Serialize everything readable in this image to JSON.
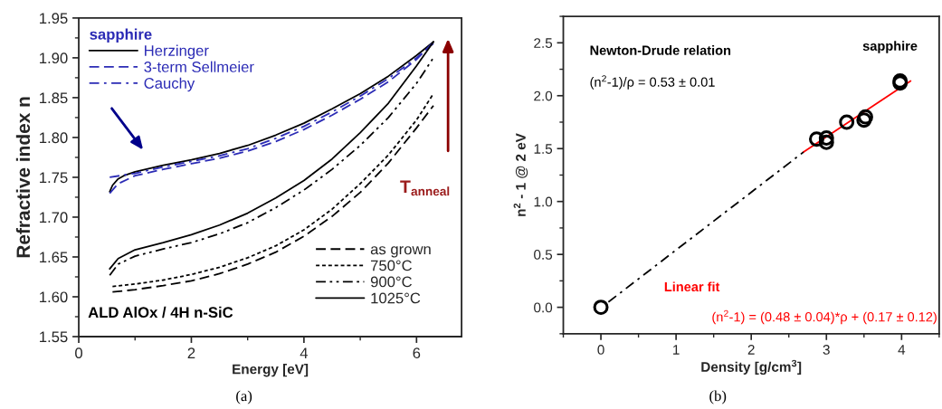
{
  "chart_data": [
    {
      "type": "line",
      "xlabel": "Energy [eV]",
      "ylabel": "Refractive index n",
      "legend_title": "sapphire",
      "legend": "top left",
      "xlim": [
        0,
        6.8
      ],
      "xticks": [
        0,
        2,
        4,
        6
      ],
      "ylim": [
        1.55,
        1.95
      ],
      "yticks": [
        {
          "value": 1.55,
          "label": "1.55"
        },
        {
          "value": 1.6,
          "label": "1.60"
        },
        {
          "value": 1.65,
          "label": "1.65"
        },
        {
          "value": 1.7,
          "label": "1.70"
        },
        {
          "value": 1.75,
          "label": "1.75"
        },
        {
          "value": 1.8,
          "label": "1.80"
        },
        {
          "value": 1.85,
          "label": "1.85"
        },
        {
          "value": 1.9,
          "label": "1.90"
        },
        {
          "value": 1.95,
          "label": "1.95"
        }
      ],
      "series": [
        {
          "name": "Herzinger",
          "color": "#000000",
          "line_style": "solid",
          "x": [
            0.55,
            0.6,
            0.7,
            0.8,
            1.0,
            1.5,
            2,
            2.5,
            3,
            3.5,
            4,
            4.5,
            5,
            5.5,
            6,
            6.3
          ],
          "values": [
            1.732,
            1.74,
            1.748,
            1.752,
            1.757,
            1.765,
            1.772,
            1.78,
            1.79,
            1.803,
            1.818,
            1.836,
            1.855,
            1.877,
            1.903,
            1.92
          ]
        },
        {
          "name": "3-term Sellmeier",
          "color": "#2b2bb5",
          "line_style": "dashed",
          "x": [
            0.55,
            0.7,
            1.0,
            1.5,
            2,
            2.5,
            3,
            3.5,
            4,
            4.5,
            5,
            5.5,
            6,
            6.3
          ],
          "values": [
            1.73,
            1.742,
            1.752,
            1.76,
            1.767,
            1.774,
            1.783,
            1.795,
            1.81,
            1.828,
            1.848,
            1.87,
            1.898,
            1.92
          ]
        },
        {
          "name": "Cauchy",
          "color": "#2b2bb5",
          "line_style": "dashdot",
          "x": [
            0.55,
            1.0,
            1.5,
            2,
            2.5,
            3,
            3.5,
            4,
            4.5,
            5,
            5.5,
            6,
            6.3
          ],
          "values": [
            1.75,
            1.755,
            1.763,
            1.77,
            1.777,
            1.786,
            1.799,
            1.814,
            1.832,
            1.852,
            1.874,
            1.9,
            1.918
          ]
        },
        {
          "name": "as grown",
          "color": "#000000",
          "line_style": "dashed",
          "x": [
            0.6,
            1.0,
            1.5,
            2,
            2.5,
            3,
            3.5,
            4,
            4.5,
            5,
            5.5,
            6,
            6.3
          ],
          "values": [
            1.606,
            1.609,
            1.614,
            1.62,
            1.629,
            1.641,
            1.656,
            1.676,
            1.701,
            1.731,
            1.768,
            1.812,
            1.84
          ]
        },
        {
          "name": "750°C",
          "color": "#000000",
          "line_style": "dotted",
          "x": [
            0.6,
            1.0,
            1.5,
            2,
            2.5,
            3,
            3.5,
            4,
            4.5,
            5,
            5.5,
            6,
            6.3
          ],
          "values": [
            1.613,
            1.616,
            1.621,
            1.628,
            1.637,
            1.649,
            1.664,
            1.684,
            1.71,
            1.742,
            1.778,
            1.822,
            1.855
          ]
        },
        {
          "name": "900°C",
          "color": "#000000",
          "line_style": "dashdotdot",
          "x": [
            0.55,
            0.7,
            1.0,
            1.5,
            2,
            2.5,
            3,
            3.5,
            4,
            4.5,
            5,
            5.5,
            6,
            6.3
          ],
          "values": [
            1.627,
            1.641,
            1.651,
            1.66,
            1.668,
            1.679,
            1.693,
            1.712,
            1.734,
            1.76,
            1.79,
            1.825,
            1.868,
            1.9
          ]
        },
        {
          "name": "1025°C",
          "color": "#000000",
          "line_style": "solid",
          "x": [
            0.55,
            0.7,
            1.0,
            1.5,
            2,
            2.5,
            3,
            3.5,
            4,
            4.5,
            5,
            5.5,
            6,
            6.3
          ],
          "values": [
            1.635,
            1.648,
            1.659,
            1.668,
            1.678,
            1.69,
            1.705,
            1.724,
            1.746,
            1.773,
            1.806,
            1.843,
            1.89,
            1.92
          ]
        }
      ],
      "annotations": [
        "ALD AlOx / 4H n-SiC",
        "T$_{anneal}$",
        "(a)"
      ]
    },
    {
      "type": "scatter",
      "xlabel": "Density [g/cm$^{3}$]",
      "ylabel": "n$^{2}$ - 1 @ 2 eV",
      "xlim": [
        -0.5,
        4.5
      ],
      "xticks": [
        0,
        1,
        2,
        3,
        4
      ],
      "ylim": [
        -0.25,
        2.75
      ],
      "yticks": [
        {
          "value": 0,
          "label": "0.0"
        },
        {
          "value": 0.5,
          "label": "0.5"
        },
        {
          "value": 1,
          "label": "1.0"
        },
        {
          "value": 1.5,
          "label": "1.5"
        },
        {
          "value": 2,
          "label": "2.0"
        },
        {
          "value": 2.5,
          "label": "2.5"
        }
      ],
      "series": [
        {
          "type": "line",
          "color": "#000000",
          "line_style": "dashdot",
          "x": [
            0.1,
            2.7
          ],
          "values": [
            0.05,
            1.47
          ]
        },
        {
          "type": "line",
          "color": "#ff0000",
          "line_style": "solid",
          "x": [
            2.7,
            4.12
          ],
          "values": [
            1.47,
            2.14
          ]
        },
        {
          "color": "#000000",
          "marker": "circle",
          "x": [
            0,
            2.87,
            3.0,
            3.0,
            3.27,
            3.5,
            3.52,
            3.98,
            3.98
          ],
          "values": [
            0,
            1.59,
            1.56,
            1.6,
            1.75,
            1.77,
            1.8,
            2.12,
            2.14
          ]
        }
      ],
      "annotations": [
        "Newton-Drude relation",
        "(n$^{2}$-1)/ρ = 0.53 ± 0.01",
        {
          "text": "sapphire",
          "x": 3.98,
          "y": 2.14
        },
        "Linear fit",
        "(n$^{2}$-1) = (0.48 ± 0.04)*ρ + (0.17 ± 0.12)",
        "(b)"
      ]
    }
  ]
}
